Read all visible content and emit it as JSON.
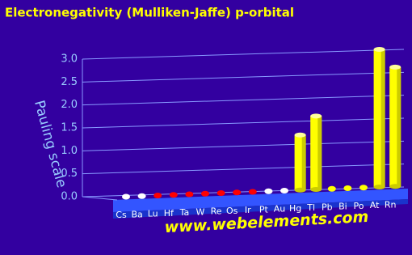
{
  "chart_data": {
    "type": "bar3d",
    "title": "Electronegativity (Mulliken-Jaffe) p-orbital",
    "y_label": "Pauling scale",
    "footer": "www.webelements.com",
    "categories": [
      "Cs",
      "Ba",
      "Lu",
      "Hf",
      "Ta",
      "W",
      "Re",
      "Os",
      "Ir",
      "Pt",
      "Au",
      "Hg",
      "Tl",
      "Pb",
      "Bi",
      "Po",
      "At",
      "Rn"
    ],
    "values": [
      null,
      null,
      null,
      null,
      null,
      null,
      null,
      null,
      null,
      null,
      null,
      1.2,
      1.6,
      null,
      null,
      null,
      3.0,
      2.6
    ],
    "dot_colors": [
      "#ffffff",
      "#ffffff",
      "#ff0000",
      "#ff0000",
      "#ff0000",
      "#ff0000",
      "#ff0000",
      "#ff0000",
      "#ff0000",
      "#ffffff",
      "#ffffff",
      "#ffff00",
      "#ffff00",
      "#ffff00",
      "#ffff00",
      "#ffff00",
      "#ffff00",
      "#ffff00"
    ],
    "color": "#ffff00",
    "ylim": [
      0,
      3.0
    ],
    "yticks": [
      {
        "value": 0,
        "label": "0.0"
      },
      0.5,
      {
        "value": 1,
        "label": "1.0"
      },
      1.5,
      {
        "value": 2,
        "label": "2.0"
      },
      2.5,
      {
        "value": 3,
        "label": "3.0"
      }
    ],
    "grid": true
  }
}
